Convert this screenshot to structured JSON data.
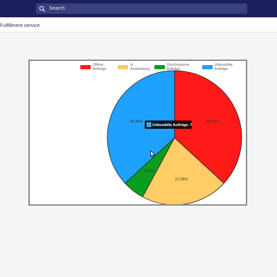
{
  "header": {
    "search_placeholder": "Search",
    "icon": "search-icon"
  },
  "page": {
    "title": "Fulfillment service"
  },
  "chart_data": {
    "type": "pie",
    "title": "",
    "legend_position": "top",
    "slices": [
      {
        "label": "Offene Aufträge",
        "value": 36.84,
        "display": "36.84%",
        "color": "#ff1a1a"
      },
      {
        "label": "In Bearbeitung",
        "value": 21.05,
        "display": "21.05%",
        "color": "#ffcc66"
      },
      {
        "label": "Geschlossene Aufträge",
        "value": 5.26,
        "display": "5.26%",
        "color": "#0a9e1e"
      },
      {
        "label": "Unbezahlte Aufträge",
        "value": 36.84,
        "display": "36.84%",
        "color": "#1ea1ff"
      }
    ],
    "tooltip": {
      "text": "Unbezahlte Aufträge: 7",
      "series": "Unbezahlte Aufträge",
      "value": 7,
      "color": "#1ea1ff"
    }
  }
}
